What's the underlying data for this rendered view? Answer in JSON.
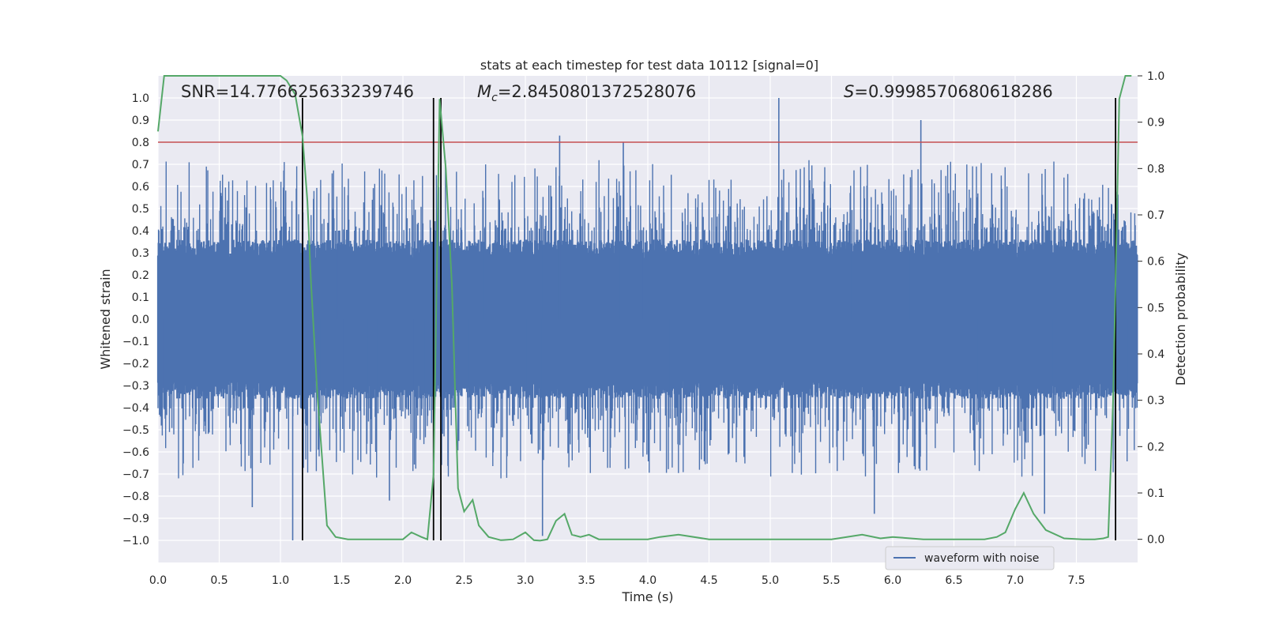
{
  "chart_data": {
    "type": "line",
    "title": "stats at each timestep for test data 10112 [signal=0]",
    "xlabel": "Time (s)",
    "ylabel": "Whitened strain",
    "y2label": "Detection probability",
    "xlim": [
      0,
      8.0
    ],
    "ylim": [
      -1.1,
      1.1
    ],
    "y2lim": [
      -0.05,
      1.0
    ],
    "x_ticks": [
      0.0,
      0.5,
      1.0,
      1.5,
      2.0,
      2.5,
      3.0,
      3.5,
      4.0,
      4.5,
      5.0,
      5.5,
      6.0,
      6.5,
      7.0,
      7.5
    ],
    "x_tick_labels": [
      "0.0",
      "0.5",
      "1.0",
      "1.5",
      "2.0",
      "2.5",
      "3.0",
      "3.5",
      "4.0",
      "4.5",
      "5.0",
      "5.5",
      "6.0",
      "6.5",
      "7.0",
      "7.5"
    ],
    "y_ticks": [
      1.0,
      0.9,
      0.8,
      0.7,
      0.6,
      0.5,
      0.4,
      0.3,
      0.2,
      0.1,
      0.0,
      -0.1,
      -0.2,
      -0.3,
      -0.4,
      -0.5,
      -0.6,
      -0.7,
      -0.8,
      -0.9,
      -1.0
    ],
    "y_tick_labels": [
      "1.0",
      "0.9",
      "0.8",
      "0.7",
      "0.6",
      "0.5",
      "0.4",
      "0.3",
      "0.2",
      "0.1",
      "0.0",
      "−0.1",
      "−0.2",
      "−0.3",
      "−0.4",
      "−0.5",
      "−0.6",
      "−0.7",
      "−0.8",
      "−0.9",
      "−1.0"
    ],
    "y2_ticks": [
      1.0,
      0.9,
      0.8,
      0.7,
      0.6,
      0.5,
      0.4,
      0.3,
      0.2,
      0.1,
      0.0
    ],
    "y2_tick_labels": [
      "1.0",
      "0.9",
      "0.8",
      "0.7",
      "0.6",
      "0.5",
      "0.4",
      "0.3",
      "0.2",
      "0.1",
      "0.0"
    ],
    "grid": true,
    "background": "#eaeaf2",
    "annotations": {
      "snr": "SNR=14.776625633239746",
      "mc_symbol": "M",
      "mc_sub": "c",
      "mc_value": "=2.8450801372528076",
      "s_symbol": "S",
      "s_value": "=0.9998570680618286"
    },
    "threshold": {
      "value": 0.8,
      "color": "#c44e52"
    },
    "vertical_lines": [
      1.18,
      2.25,
      2.31,
      7.82
    ],
    "series": [
      {
        "name": "waveform with noise",
        "axis": "left",
        "color": "#4c72b0",
        "kind": "noise",
        "sample_rate": 256,
        "duration": 8.0,
        "core_amplitude": 0.36,
        "spikes": [
          {
            "x": 1.1,
            "y": -1.0
          },
          {
            "x": 5.07,
            "y": 1.0
          },
          {
            "x": 6.23,
            "y": 0.9
          },
          {
            "x": 3.14,
            "y": -0.98
          },
          {
            "x": 3.28,
            "y": 0.83
          },
          {
            "x": 5.85,
            "y": -0.88
          },
          {
            "x": 7.24,
            "y": -0.88
          },
          {
            "x": 0.77,
            "y": -0.85
          },
          {
            "x": 1.89,
            "y": -0.82
          },
          {
            "x": 3.8,
            "y": 0.8
          }
        ]
      },
      {
        "name": "detection probability",
        "axis": "right",
        "color": "#55a868",
        "x": [
          0.0,
          0.05,
          0.15,
          0.3,
          0.6,
          0.9,
          1.0,
          1.05,
          1.12,
          1.18,
          1.22,
          1.25,
          1.3,
          1.38,
          1.45,
          1.55,
          1.7,
          1.85,
          2.0,
          2.07,
          2.15,
          2.2,
          2.25,
          2.3,
          2.35,
          2.4,
          2.45,
          2.5,
          2.57,
          2.62,
          2.7,
          2.8,
          2.9,
          3.0,
          3.07,
          3.12,
          3.18,
          3.25,
          3.32,
          3.38,
          3.45,
          3.52,
          3.6,
          3.7,
          3.85,
          4.0,
          4.1,
          4.25,
          4.5,
          4.75,
          5.0,
          5.25,
          5.5,
          5.75,
          5.9,
          6.0,
          6.25,
          6.5,
          6.75,
          6.85,
          6.92,
          7.0,
          7.07,
          7.15,
          7.25,
          7.4,
          7.55,
          7.65,
          7.72,
          7.76,
          7.8,
          7.85,
          7.9,
          7.95
        ],
        "y": [
          0.88,
          1.0,
          1.0,
          1.0,
          1.0,
          1.0,
          1.0,
          0.99,
          0.96,
          0.87,
          0.73,
          0.55,
          0.32,
          0.03,
          0.005,
          0.0,
          0.0,
          0.0,
          0.0,
          0.015,
          0.005,
          0.0,
          0.14,
          0.95,
          0.8,
          0.55,
          0.11,
          0.06,
          0.085,
          0.03,
          0.005,
          -0.002,
          0.0,
          0.015,
          -0.002,
          -0.003,
          0.0,
          0.04,
          0.055,
          0.01,
          0.005,
          0.01,
          0.0,
          0.0,
          0.0,
          0.0,
          0.005,
          0.01,
          0.0,
          0.0,
          0.0,
          0.0,
          0.0,
          0.01,
          0.002,
          0.005,
          0.0,
          0.0,
          0.0,
          0.005,
          0.015,
          0.065,
          0.1,
          0.055,
          0.02,
          0.002,
          0.0,
          0.0,
          0.002,
          0.005,
          0.3,
          0.95,
          1.0,
          1.0
        ]
      }
    ],
    "legend": {
      "entries": [
        "waveform with noise"
      ],
      "placement": "lower-right"
    }
  }
}
